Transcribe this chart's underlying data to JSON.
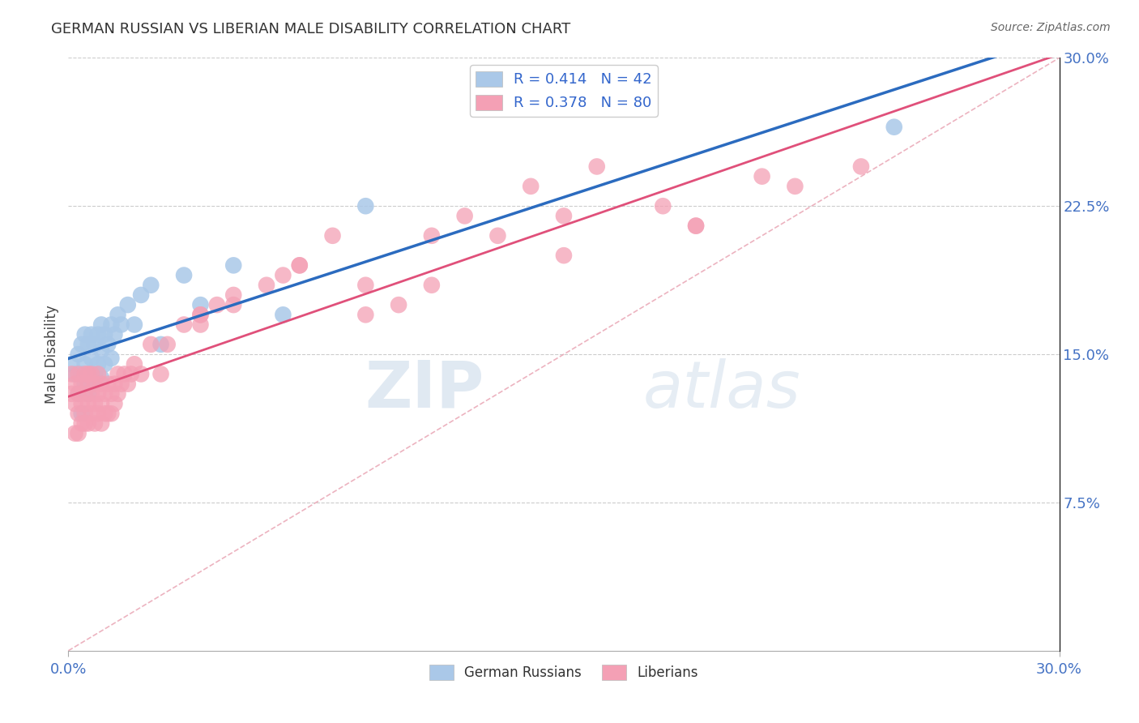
{
  "title": "GERMAN RUSSIAN VS LIBERIAN MALE DISABILITY CORRELATION CHART",
  "source_text": "Source: ZipAtlas.com",
  "ylabel": "Male Disability",
  "xlim": [
    0.0,
    0.3
  ],
  "ylim": [
    0.0,
    0.3
  ],
  "xtick_vals": [
    0.0,
    0.3
  ],
  "xtick_labels": [
    "0.0%",
    "30.0%"
  ],
  "ytick_vals_right": [
    0.075,
    0.15,
    0.225,
    0.3
  ],
  "ytick_labels_right": [
    "7.5%",
    "15.0%",
    "22.5%",
    "30.0%"
  ],
  "german_russian_color": "#aac8e8",
  "liberian_color": "#f4a0b5",
  "german_russian_trend_color": "#2b6bbf",
  "liberian_trend_color": "#e0507a",
  "diagonal_color": "#c8c8c8",
  "legend_R1": "R = 0.414",
  "legend_N1": "N = 42",
  "legend_R2": "R = 0.378",
  "legend_N2": "N = 80",
  "legend_label1": "German Russians",
  "legend_label2": "Liberians",
  "watermark_zip": "ZIP",
  "watermark_atlas": "atlas",
  "title_color": "#333333",
  "axis_label_color": "#444444",
  "tick_color_right": "#4472c4",
  "tick_color_bottom": "#4472c4",
  "background_color": "#ffffff",
  "grid_color": "#cccccc",
  "german_russian_x": [
    0.001,
    0.002,
    0.003,
    0.003,
    0.004,
    0.004,
    0.004,
    0.005,
    0.005,
    0.005,
    0.006,
    0.006,
    0.006,
    0.007,
    0.007,
    0.007,
    0.008,
    0.008,
    0.009,
    0.009,
    0.01,
    0.01,
    0.01,
    0.011,
    0.011,
    0.012,
    0.013,
    0.013,
    0.014,
    0.015,
    0.016,
    0.018,
    0.02,
    0.022,
    0.025,
    0.028,
    0.035,
    0.04,
    0.05,
    0.065,
    0.09,
    0.25
  ],
  "german_russian_y": [
    0.145,
    0.14,
    0.13,
    0.15,
    0.14,
    0.155,
    0.12,
    0.145,
    0.135,
    0.16,
    0.14,
    0.155,
    0.13,
    0.148,
    0.135,
    0.16,
    0.14,
    0.155,
    0.145,
    0.16,
    0.138,
    0.152,
    0.165,
    0.145,
    0.16,
    0.155,
    0.148,
    0.165,
    0.16,
    0.17,
    0.165,
    0.175,
    0.165,
    0.18,
    0.185,
    0.155,
    0.19,
    0.175,
    0.195,
    0.17,
    0.225,
    0.265
  ],
  "liberian_x": [
    0.001,
    0.001,
    0.002,
    0.002,
    0.002,
    0.003,
    0.003,
    0.003,
    0.003,
    0.004,
    0.004,
    0.004,
    0.005,
    0.005,
    0.005,
    0.005,
    0.006,
    0.006,
    0.006,
    0.006,
    0.007,
    0.007,
    0.007,
    0.008,
    0.008,
    0.008,
    0.009,
    0.009,
    0.009,
    0.01,
    0.01,
    0.01,
    0.011,
    0.011,
    0.012,
    0.012,
    0.013,
    0.013,
    0.014,
    0.014,
    0.015,
    0.015,
    0.016,
    0.017,
    0.018,
    0.019,
    0.02,
    0.022,
    0.025,
    0.028,
    0.03,
    0.035,
    0.04,
    0.04,
    0.045,
    0.05,
    0.06,
    0.065,
    0.07,
    0.08,
    0.09,
    0.1,
    0.11,
    0.12,
    0.13,
    0.14,
    0.15,
    0.16,
    0.18,
    0.19,
    0.21,
    0.22,
    0.24,
    0.04,
    0.05,
    0.07,
    0.09,
    0.11,
    0.15,
    0.19
  ],
  "liberian_y": [
    0.13,
    0.14,
    0.11,
    0.135,
    0.125,
    0.13,
    0.12,
    0.14,
    0.11,
    0.125,
    0.135,
    0.115,
    0.13,
    0.12,
    0.14,
    0.115,
    0.125,
    0.135,
    0.115,
    0.14,
    0.13,
    0.12,
    0.14,
    0.125,
    0.135,
    0.115,
    0.13,
    0.12,
    0.14,
    0.125,
    0.135,
    0.115,
    0.13,
    0.12,
    0.135,
    0.12,
    0.13,
    0.12,
    0.135,
    0.125,
    0.14,
    0.13,
    0.135,
    0.14,
    0.135,
    0.14,
    0.145,
    0.14,
    0.155,
    0.14,
    0.155,
    0.165,
    0.17,
    0.165,
    0.175,
    0.18,
    0.185,
    0.19,
    0.195,
    0.21,
    0.17,
    0.175,
    0.185,
    0.22,
    0.21,
    0.235,
    0.22,
    0.245,
    0.225,
    0.215,
    0.24,
    0.235,
    0.245,
    0.17,
    0.175,
    0.195,
    0.185,
    0.21,
    0.2,
    0.215
  ]
}
